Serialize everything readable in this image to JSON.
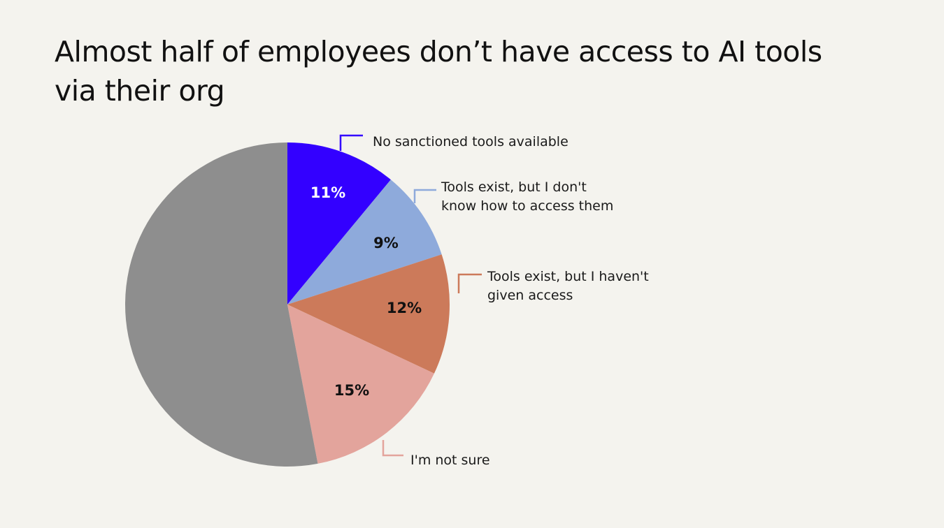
{
  "title": "Almost half of employees don’t have access to AI tools via their org",
  "chart_data": {
    "type": "pie",
    "title": "Almost half of employees don’t have access to AI tools via their org",
    "slices": [
      {
        "key": "no-sanctioned",
        "label": [
          "No sanctioned tools available"
        ],
        "value": 11,
        "display": "11%",
        "color": "#3300ff",
        "text_color": "#ffffff"
      },
      {
        "key": "dont-know-access",
        "label": [
          "Tools exist, but I don't",
          "know how to access them"
        ],
        "value": 9,
        "display": "9%",
        "color": "#8eaadb",
        "text_color": "#111111"
      },
      {
        "key": "not-given-access",
        "label": [
          "Tools exist, but I haven't",
          "given access"
        ],
        "value": 12,
        "display": "12%",
        "color": "#cc7a5a",
        "text_color": "#111111"
      },
      {
        "key": "not-sure",
        "label": [
          "I'm not sure"
        ],
        "value": 15,
        "display": "15%",
        "color": "#e3a49c",
        "text_color": "#111111"
      },
      {
        "key": "remainder",
        "label": [],
        "value": 53,
        "display": "",
        "color": "#8e8e8e",
        "text_color": "#111111"
      }
    ]
  }
}
